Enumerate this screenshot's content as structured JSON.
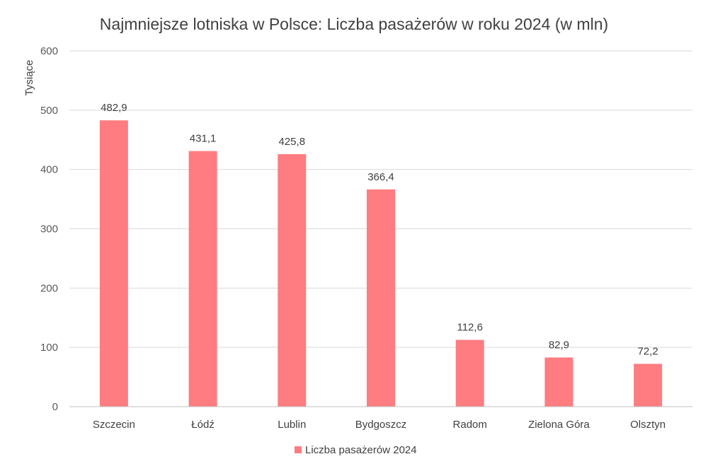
{
  "chart_data": {
    "type": "bar",
    "title": "Najmniejsze lotniska w Polsce: Liczba pasażerów w roku 2024 (w mln)",
    "ylabel": "Tysiące",
    "xlabel": "",
    "categories": [
      "Szczecin",
      "Łódź",
      "Lublin",
      "Bydgoszcz",
      "Radom",
      "Zielona Góra",
      "Olsztyn"
    ],
    "series": [
      {
        "name": "Liczba pasażerów 2024",
        "values": [
          482.9,
          431.1,
          425.8,
          366.4,
          112.6,
          82.9,
          72.2
        ],
        "value_labels": [
          "482,9",
          "431,1",
          "425,8",
          "366,4",
          "112,6",
          "82,9",
          "72,2"
        ],
        "color": "#ff7c80"
      }
    ],
    "ylim": [
      0,
      600
    ],
    "yticks": [
      0,
      100,
      200,
      300,
      400,
      500,
      600
    ],
    "grid": true,
    "legend_position": "bottom"
  }
}
